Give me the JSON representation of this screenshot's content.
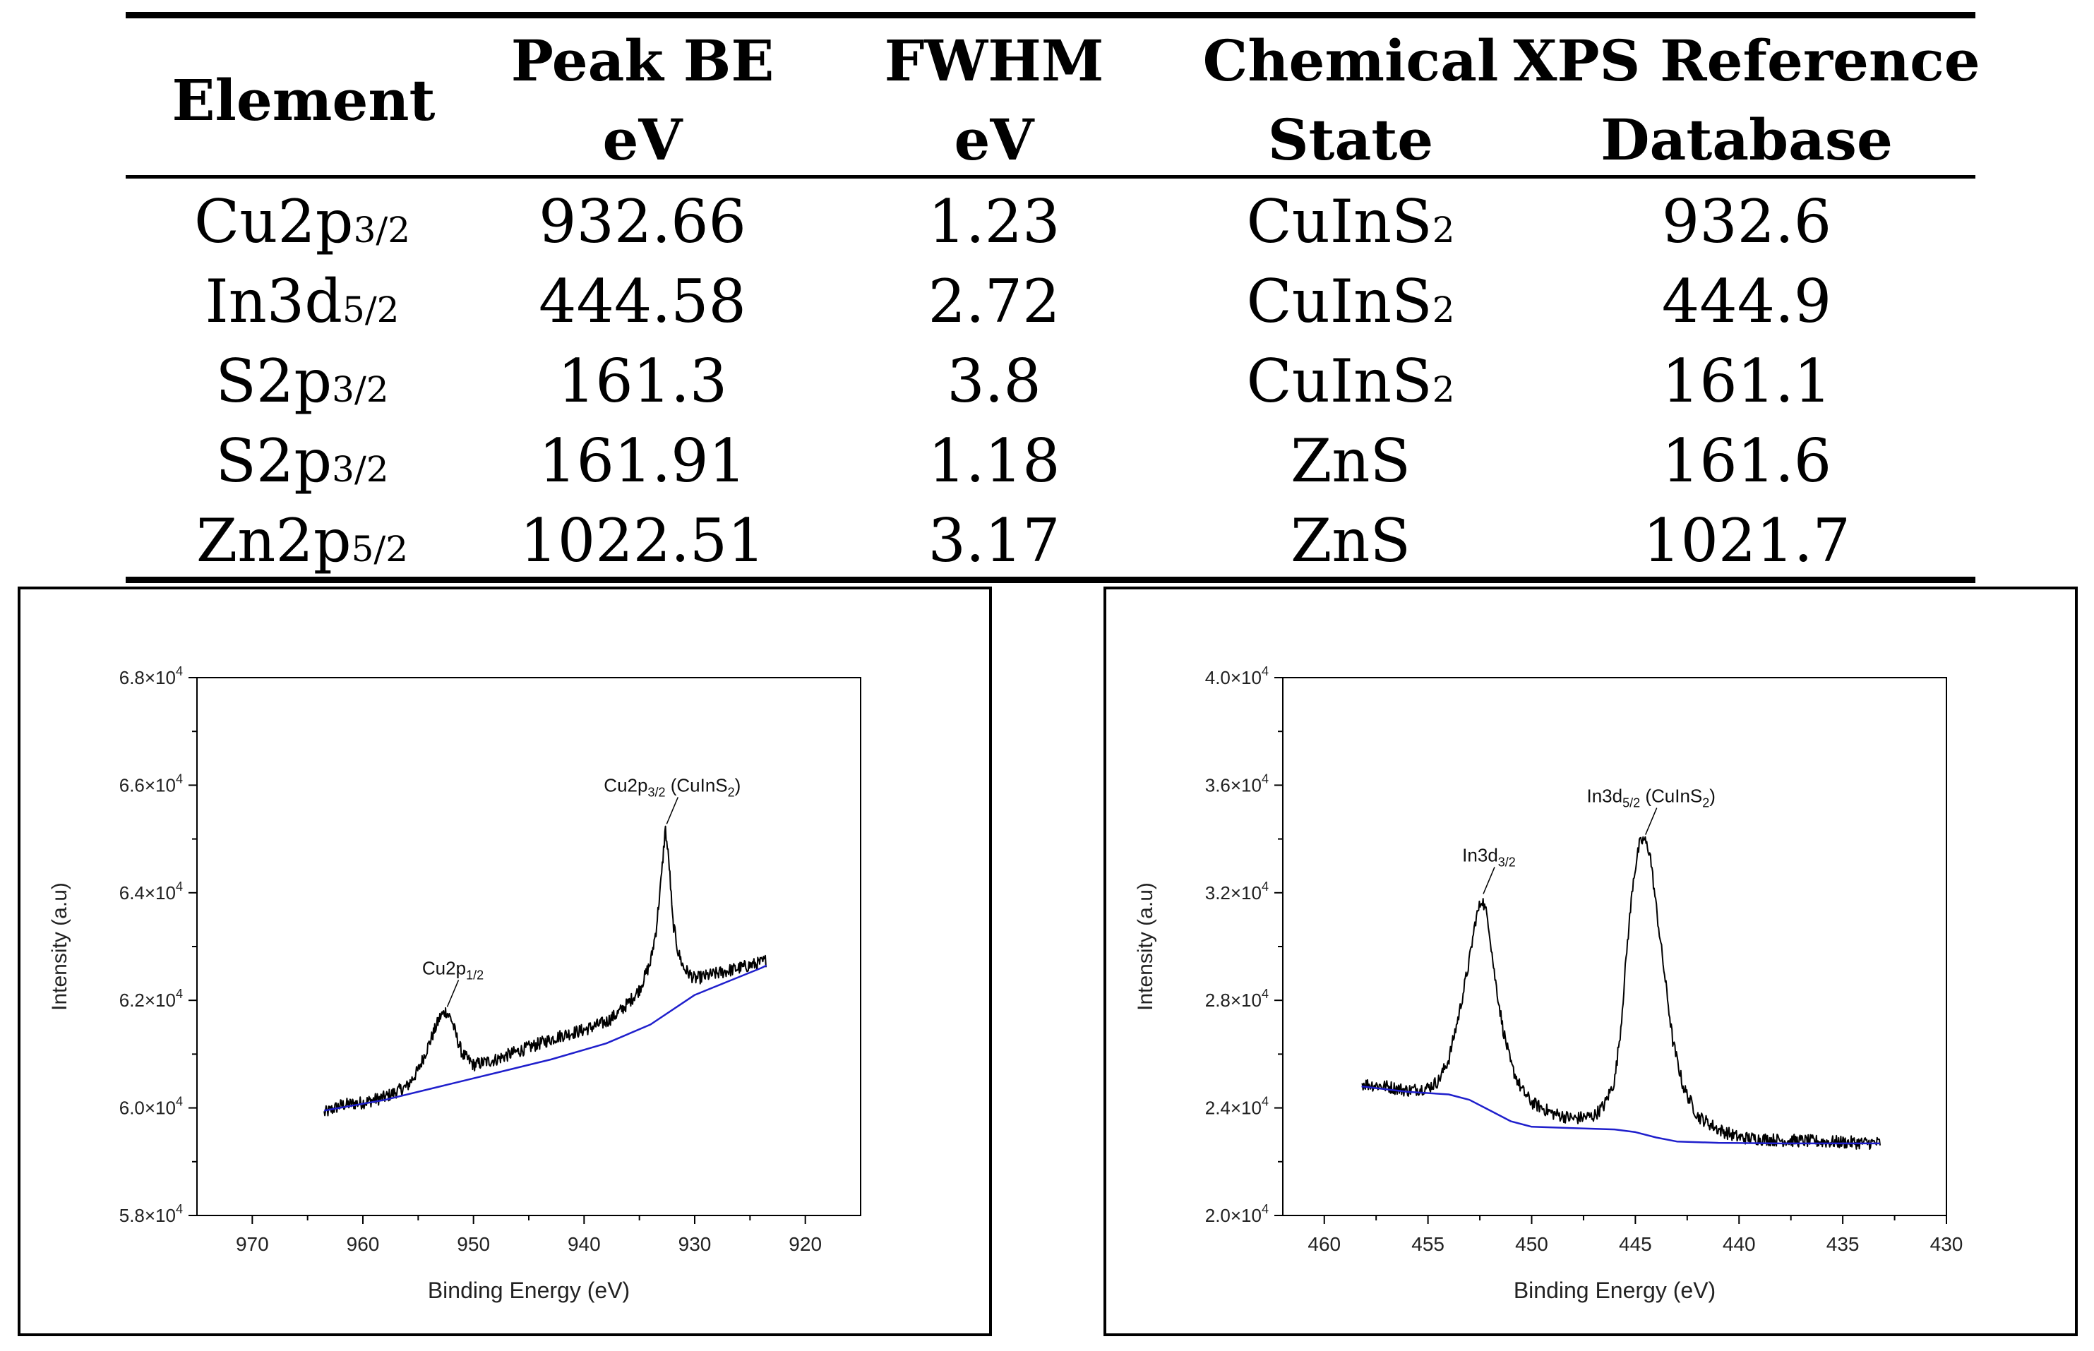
{
  "table": {
    "headers": [
      {
        "l1": "Element",
        "l2": ""
      },
      {
        "l1": "Peak BE",
        "l2": "eV"
      },
      {
        "l1": "FWHM",
        "l2": "eV"
      },
      {
        "l1": "Chemical",
        "l2": "State"
      },
      {
        "l1": "XPS Reference",
        "l2": "Database"
      }
    ],
    "rows": [
      {
        "el": "Cu2p",
        "el_sub": "3/2",
        "be": "932.66",
        "fwhm": "1.23",
        "state": "CuInS",
        "state_sub": "2",
        "ref": "932.6"
      },
      {
        "el": "In3d",
        "el_sub": "5/2",
        "be": "444.58",
        "fwhm": "2.72",
        "state": "CuInS",
        "state_sub": "2",
        "ref": "444.9"
      },
      {
        "el": "S2p",
        "el_sub": "3/2",
        "be": "161.3",
        "fwhm": "3.8",
        "state": "CuInS",
        "state_sub": "2",
        "ref": "161.1"
      },
      {
        "el": "S2p",
        "el_sub": "3/2",
        "be": "161.91",
        "fwhm": "1.18",
        "state": "ZnS",
        "state_sub": "",
        "ref": "161.6"
      },
      {
        "el": "Zn2p",
        "el_sub": "5/2",
        "be": "1022.51",
        "fwhm": "3.17",
        "state": "ZnS",
        "state_sub": "",
        "ref": "1021.7"
      }
    ]
  },
  "chart_data": [
    {
      "type": "line",
      "title": "",
      "xlabel": "Binding Energy (eV)",
      "ylabel": "Intensity (a.u)",
      "xlim": [
        975,
        915
      ],
      "ylim": [
        58000,
        68000
      ],
      "xticks": [
        970,
        960,
        950,
        940,
        930,
        920
      ],
      "yticks": [
        {
          "mant": "5.8×10",
          "exp": "4"
        },
        {
          "mant": "6.0×10",
          "exp": "4"
        },
        {
          "mant": "6.2×10",
          "exp": "4"
        },
        {
          "mant": "6.4×10",
          "exp": "4"
        },
        {
          "mant": "6.6×10",
          "exp": "4"
        },
        {
          "mant": "6.8×10",
          "exp": "4"
        }
      ],
      "ytick_values": [
        58000,
        60000,
        62000,
        64000,
        66000,
        68000
      ],
      "series": [
        {
          "name": "Spectrum",
          "color": "#000000",
          "x": [
            963.5,
            962,
            960,
            958,
            956,
            955,
            954,
            953,
            952.5,
            952,
            951.5,
            951,
            950,
            948,
            946,
            944,
            942,
            940,
            938,
            937,
            936,
            935,
            934,
            933.5,
            933,
            932.66,
            932.3,
            932,
            931.5,
            931,
            930,
            929,
            928,
            926,
            924,
            923.5
          ],
          "y": [
            59900,
            60050,
            60100,
            60200,
            60400,
            60700,
            61200,
            61700,
            61800,
            61650,
            61300,
            61000,
            60800,
            60900,
            61050,
            61200,
            61350,
            61450,
            61600,
            61750,
            61950,
            62200,
            62700,
            63300,
            64300,
            65200,
            64500,
            63500,
            62900,
            62600,
            62400,
            62450,
            62500,
            62600,
            62700,
            62750
          ]
        },
        {
          "name": "Background",
          "color": "#1f1fcc",
          "x": [
            963.5,
            958,
            953,
            948,
            943,
            938,
            934,
            930,
            927,
            924,
            923.5
          ],
          "y": [
            59950,
            60150,
            60400,
            60650,
            60900,
            61200,
            61550,
            62100,
            62350,
            62600,
            62650
          ]
        }
      ],
      "annotations": [
        {
          "label": "Cu2p",
          "sub": "1/2",
          "tail": "",
          "x": 952.5,
          "y": 61800
        },
        {
          "label": "Cu2p",
          "sub": "3/2",
          "tail": " (CuInS",
          "sub2": "2",
          "tail2": ")",
          "x": 932.66,
          "y": 65200
        }
      ]
    },
    {
      "type": "line",
      "title": "",
      "xlabel": "Binding Energy (eV)",
      "ylabel": "Intensity (a.u)",
      "xlim": [
        462,
        430
      ],
      "ylim": [
        20000,
        40000
      ],
      "xticks": [
        460,
        455,
        450,
        445,
        440,
        435,
        430
      ],
      "yticks": [
        {
          "mant": "2.0×10",
          "exp": "4"
        },
        {
          "mant": "2.4×10",
          "exp": "4"
        },
        {
          "mant": "2.8×10",
          "exp": "4"
        },
        {
          "mant": "3.2×10",
          "exp": "4"
        },
        {
          "mant": "3.6×10",
          "exp": "4"
        },
        {
          "mant": "4.0×10",
          "exp": "4"
        }
      ],
      "ytick_values": [
        20000,
        24000,
        28000,
        32000,
        36000,
        40000
      ],
      "series": [
        {
          "name": "Spectrum",
          "color": "#000000",
          "x": [
            458.2,
            457,
            456,
            455,
            454.5,
            454,
            453.5,
            453,
            452.7,
            452.4,
            452.1,
            451.8,
            451.4,
            451,
            450.5,
            450,
            449,
            448,
            447,
            446.5,
            446,
            445.7,
            445.4,
            445.1,
            444.8,
            444.58,
            444.3,
            444,
            443.6,
            443.2,
            442.7,
            442,
            441,
            440,
            438,
            436,
            434,
            433.2
          ],
          "y": [
            24900,
            24800,
            24650,
            24750,
            25000,
            25800,
            27500,
            29500,
            31000,
            31800,
            31000,
            29000,
            27000,
            25600,
            24700,
            24200,
            23800,
            23600,
            23700,
            24100,
            25000,
            27000,
            30000,
            32500,
            33800,
            34000,
            33500,
            31500,
            29000,
            26500,
            24800,
            23700,
            23200,
            22900,
            22800,
            22750,
            22700,
            22700
          ]
        },
        {
          "name": "Background",
          "color": "#1f1fcc",
          "x": [
            458.2,
            456,
            454,
            453,
            452,
            451,
            450,
            448,
            446,
            445,
            444,
            443,
            441,
            438,
            435,
            433.2
          ],
          "y": [
            24800,
            24600,
            24500,
            24300,
            23900,
            23500,
            23300,
            23250,
            23200,
            23100,
            22900,
            22750,
            22700,
            22680,
            22680,
            22680
          ]
        }
      ],
      "annotations": [
        {
          "label": "In3d",
          "sub": "3/2",
          "tail": "",
          "x": 452.4,
          "y": 31800
        },
        {
          "label": "In3d",
          "sub": "5/2",
          "tail": " (CuInS",
          "sub2": "2",
          "tail2": ")",
          "x": 444.58,
          "y": 34000
        }
      ]
    }
  ]
}
